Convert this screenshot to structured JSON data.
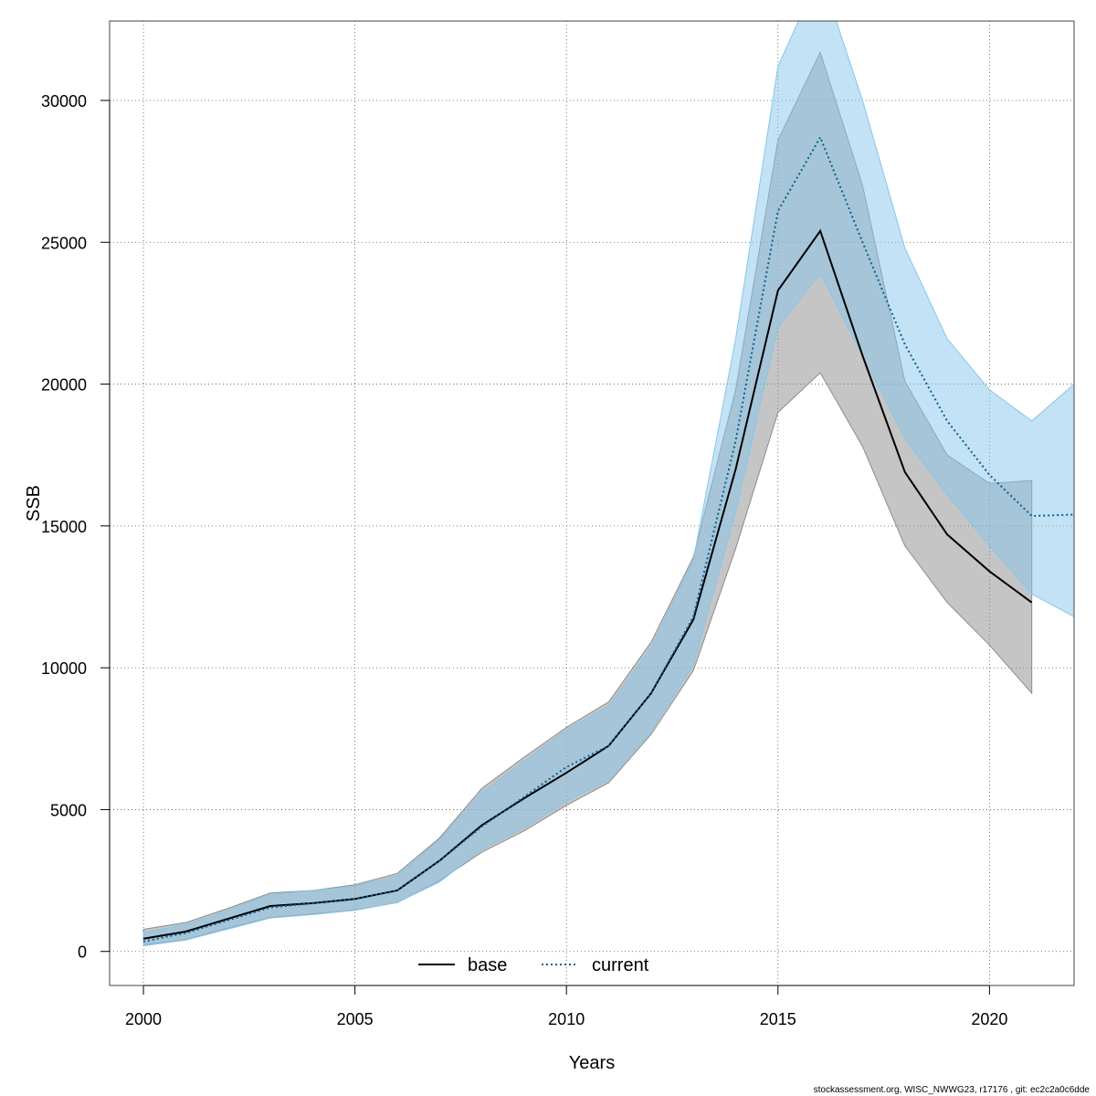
{
  "chart_data": {
    "type": "line",
    "title": "",
    "xlabel": "Years",
    "ylabel": "SSB",
    "xlim": [
      1999.2,
      2022
    ],
    "ylim": [
      -1200,
      32800
    ],
    "x_ticks": [
      2000,
      2005,
      2010,
      2015,
      2020
    ],
    "y_ticks": [
      0,
      5000,
      10000,
      15000,
      20000,
      25000,
      30000
    ],
    "x_tick_labels": [
      "2000",
      "2005",
      "2010",
      "2015",
      "2020"
    ],
    "y_tick_labels": [
      "0",
      "5000",
      "10000",
      "15000",
      "20000",
      "25000",
      "30000"
    ],
    "grid": true,
    "legend_position": "bottom-center",
    "series": [
      {
        "name": "base",
        "color": "#000000",
        "band_color": "#8c8c8c",
        "line_style": "solid",
        "x": [
          2000,
          2001,
          2002,
          2003,
          2004,
          2005,
          2006,
          2007,
          2008,
          2009,
          2010,
          2011,
          2012,
          2013,
          2014,
          2015,
          2016,
          2017,
          2018,
          2019,
          2020,
          2021
        ],
        "values": [
          450,
          700,
          1150,
          1600,
          1700,
          1850,
          2150,
          3200,
          4450,
          5400,
          6300,
          7250,
          9100,
          11700,
          17000,
          23300,
          25400,
          21000,
          16900,
          14700,
          13400,
          12300
        ],
        "lower": [
          230,
          420,
          820,
          1200,
          1320,
          1460,
          1720,
          2500,
          3500,
          4250,
          5150,
          5950,
          7650,
          9900,
          14200,
          19000,
          20400,
          17800,
          14300,
          12300,
          10800,
          9100
        ],
        "upper": [
          780,
          1020,
          1520,
          2060,
          2150,
          2350,
          2750,
          4000,
          5750,
          6850,
          7900,
          8800,
          10900,
          13900,
          19800,
          28600,
          31700,
          27000,
          20100,
          17500,
          16500,
          16600
        ]
      },
      {
        "name": "current",
        "color": "#0b5f8f",
        "band_color": "#87c6eb",
        "line_style": "dotted",
        "x": [
          2000,
          2001,
          2002,
          2003,
          2004,
          2005,
          2006,
          2007,
          2008,
          2009,
          2010,
          2011,
          2012,
          2013,
          2014,
          2015,
          2016,
          2017,
          2018,
          2019,
          2020,
          2021,
          2022
        ],
        "values": [
          350,
          650,
          1100,
          1550,
          1700,
          1850,
          2150,
          3200,
          4400,
          5450,
          6500,
          7250,
          9100,
          11800,
          18000,
          26100,
          28700,
          25000,
          21400,
          18700,
          16800,
          15350,
          15400
        ],
        "lower": [
          200,
          400,
          790,
          1180,
          1300,
          1450,
          1730,
          2450,
          3600,
          4350,
          5300,
          6050,
          7750,
          10100,
          15500,
          22000,
          23900,
          21000,
          18100,
          16100,
          14300,
          12600,
          11800
        ],
        "upper": [
          650,
          950,
          1450,
          2000,
          2150,
          2300,
          2650,
          3950,
          5600,
          6700,
          7800,
          8650,
          10700,
          13800,
          21600,
          31200,
          34500,
          30000,
          24800,
          21600,
          19800,
          18700,
          20000
        ]
      }
    ]
  },
  "footer_text": "stockassessment.org, WISC_NWWG23, r17176 , git: ec2c2a0c6dde"
}
